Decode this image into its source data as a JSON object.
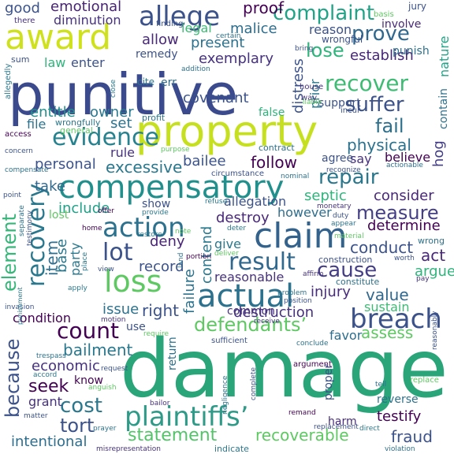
{
  "words": [
    {
      "text": "damage",
      "color": "#2aa57a"
    },
    {
      "text": "punitive",
      "color": "#3a4a8c"
    },
    {
      "text": "property",
      "color": "#c6e020"
    },
    {
      "text": "award",
      "color": "#cfe11c"
    },
    {
      "text": "compensatory",
      "color": "#21908d"
    },
    {
      "text": "claim",
      "color": "#33638d"
    },
    {
      "text": "actual",
      "color": "#2c728e"
    },
    {
      "text": "loss",
      "color": "#5ec962"
    },
    {
      "text": "breach",
      "color": "#3b528b"
    },
    {
      "text": "plaintiffs’",
      "color": "#2e9a88"
    },
    {
      "text": "defendants’",
      "color": "#5ec962"
    },
    {
      "text": "action",
      "color": "#2c728e"
    },
    {
      "text": "recovery",
      "color": "#2a788e"
    },
    {
      "text": "evidence",
      "color": "#26828e"
    },
    {
      "text": "result",
      "color": "#31688e"
    },
    {
      "text": "lot",
      "color": "#3b528b"
    },
    {
      "text": "count",
      "color": "#440154"
    },
    {
      "text": "allege",
      "color": "#3b528b"
    },
    {
      "text": "complaint",
      "color": "#20a386"
    },
    {
      "text": "recover",
      "color": "#3ebc74"
    },
    {
      "text": "prove",
      "color": "#31688e"
    },
    {
      "text": "suffer",
      "color": "#3b528b"
    },
    {
      "text": "element",
      "color": "#35b779"
    },
    {
      "text": "cause",
      "color": "#433e85"
    },
    {
      "text": "measure",
      "color": "#433e85"
    },
    {
      "text": "repair",
      "color": "#2a788e"
    },
    {
      "text": "fail",
      "color": "#2d708e"
    },
    {
      "text": "cost",
      "color": "#2a788e"
    },
    {
      "text": "tort",
      "color": "#3b528b"
    },
    {
      "text": "statement",
      "color": "#52c569"
    },
    {
      "text": "recoverable",
      "color": "#5ec962"
    },
    {
      "text": "fraud",
      "color": "#3b528b"
    },
    {
      "text": "because",
      "color": "#3b528b"
    },
    {
      "text": "intentional",
      "color": "#2e6e8e"
    },
    {
      "text": "lose",
      "color": "#2fb47c"
    },
    {
      "text": "physical",
      "color": "#2c728e"
    },
    {
      "text": "bailment",
      "color": "#2a788e"
    },
    {
      "text": "seek",
      "color": "#440154"
    },
    {
      "text": "economic",
      "color": "#46327e"
    },
    {
      "text": "destroy",
      "color": "#482878"
    },
    {
      "text": "conduct",
      "color": "#3b528b"
    },
    {
      "text": "value",
      "color": "#31688e"
    },
    {
      "text": "injury",
      "color": "#472d7b"
    },
    {
      "text": "issue",
      "color": "#2c728e"
    },
    {
      "text": "right",
      "color": "#3b528b"
    },
    {
      "text": "item",
      "color": "#2e6e8e"
    },
    {
      "text": "base",
      "color": "#2a788e"
    },
    {
      "text": "include",
      "color": "#1fa187"
    },
    {
      "text": "record",
      "color": "#3b528b"
    },
    {
      "text": "deny",
      "color": "#482475"
    },
    {
      "text": "party",
      "color": "#2a788e"
    },
    {
      "text": "reasonable",
      "color": "#46327e"
    },
    {
      "text": "contend",
      "color": "#2a788e"
    },
    {
      "text": "failure",
      "color": "#2c728e"
    },
    {
      "text": "destruction",
      "color": "#46327e"
    },
    {
      "text": "assess",
      "color": "#5ec962"
    },
    {
      "text": "act",
      "color": "#482878"
    },
    {
      "text": "argue",
      "color": "#2fb47c"
    },
    {
      "text": "determine",
      "color": "#440154"
    },
    {
      "text": "however",
      "color": "#2e6e8e"
    },
    {
      "text": "septic",
      "color": "#2fb47c"
    },
    {
      "text": "consider",
      "color": "#482878"
    },
    {
      "text": "hog",
      "color": "#433e85"
    },
    {
      "text": "excessive",
      "color": "#2a788e"
    },
    {
      "text": "bailee",
      "color": "#3b528b"
    },
    {
      "text": "follow",
      "color": "#440154"
    },
    {
      "text": "personal",
      "color": "#3b528b"
    },
    {
      "text": "rule",
      "color": "#46327e"
    },
    {
      "text": "set",
      "color": "#2c728e"
    },
    {
      "text": "entitle",
      "color": "#21908d"
    },
    {
      "text": "owner",
      "color": "#2a788e"
    },
    {
      "text": "covenant",
      "color": "#3b528b"
    },
    {
      "text": "exemplary",
      "color": "#46327e"
    },
    {
      "text": "malice",
      "color": "#2e6e8e"
    },
    {
      "text": "present",
      "color": "#2c728e"
    },
    {
      "text": "law",
      "color": "#2fb47c"
    },
    {
      "text": "enter",
      "color": "#3b528b"
    },
    {
      "text": "allow",
      "color": "#482878"
    },
    {
      "text": "legal",
      "color": "#3ebc74"
    },
    {
      "text": "remedy",
      "color": "#3b528b"
    },
    {
      "text": "proof",
      "color": "#440154"
    },
    {
      "text": "good",
      "color": "#3b528b"
    },
    {
      "text": "emotional",
      "color": "#482475"
    },
    {
      "text": "diminution",
      "color": "#46327e"
    },
    {
      "text": "distress",
      "color": "#3b528b"
    },
    {
      "text": "prior",
      "color": "#2a788e"
    },
    {
      "text": "reason",
      "color": "#3b528b"
    },
    {
      "text": "establish",
      "color": "#482878"
    },
    {
      "text": "nature",
      "color": "#20a386"
    },
    {
      "text": "support",
      "color": "#3b528b"
    },
    {
      "text": "contain",
      "color": "#2c728e"
    },
    {
      "text": "believe",
      "color": "#440154"
    },
    {
      "text": "say",
      "color": "#46327e"
    },
    {
      "text": "agree",
      "color": "#3b528b"
    },
    {
      "text": "take",
      "color": "#31688e"
    },
    {
      "text": "lost",
      "color": "#5ec962"
    },
    {
      "text": "show",
      "color": "#3b528b"
    },
    {
      "text": "allegation",
      "color": "#3b528b"
    },
    {
      "text": "give",
      "color": "#2a788e"
    },
    {
      "text": "common",
      "color": "#46327e"
    },
    {
      "text": "condition",
      "color": "#440154"
    },
    {
      "text": "use",
      "color": "#3b528b"
    },
    {
      "text": "return",
      "color": "#2c728e"
    },
    {
      "text": "favor",
      "color": "#2e6e8e"
    },
    {
      "text": "sustain",
      "color": "#3ebc74"
    },
    {
      "text": "testify",
      "color": "#440154"
    },
    {
      "text": "harm",
      "color": "#472d7b"
    },
    {
      "text": "grant",
      "color": "#46327e"
    },
    {
      "text": "know",
      "color": "#440154"
    },
    {
      "text": "proper",
      "color": "#3b528b"
    },
    {
      "text": "reverse",
      "color": "#2c728e"
    },
    {
      "text": "file",
      "color": "#2c728e"
    },
    {
      "text": "false",
      "color": "#2fb47c"
    },
    {
      "text": "err",
      "color": "#2e6e8e"
    },
    {
      "text": "cite",
      "color": "#2a788e"
    },
    {
      "text": "punish",
      "color": "#2c728e"
    },
    {
      "text": "involve",
      "color": "#482878"
    },
    {
      "text": "wrongful",
      "color": "#3b528b"
    },
    {
      "text": "jury",
      "color": "#3b528b"
    },
    {
      "text": "there",
      "color": "#46327e"
    },
    {
      "text": "sum",
      "color": "#3b528b"
    },
    {
      "text": "wrongfully",
      "color": "#2a788e"
    },
    {
      "text": "general",
      "color": "#5ec962"
    },
    {
      "text": "contract",
      "color": "#2c728e"
    },
    {
      "text": "incur",
      "color": "#3b528b"
    },
    {
      "text": "profit",
      "color": "#2a788e"
    },
    {
      "text": "finding",
      "color": "#3b528b"
    },
    {
      "text": "certain",
      "color": "#2c728e"
    },
    {
      "text": "basis",
      "color": "#5ec962"
    },
    {
      "text": "bring",
      "color": "#3b528b"
    },
    {
      "text": "addition",
      "color": "#2c728e"
    },
    {
      "text": "house",
      "color": "#46327e"
    },
    {
      "text": "way",
      "color": "#46327e"
    },
    {
      "text": "close",
      "color": "#2a788e"
    },
    {
      "text": "liable",
      "color": "#5ec962"
    },
    {
      "text": "allegedly",
      "color": "#2a788e"
    },
    {
      "text": "access",
      "color": "#440154"
    },
    {
      "text": "concern",
      "color": "#3b528b"
    },
    {
      "text": "compensate",
      "color": "#2c728e"
    },
    {
      "text": "purpose",
      "color": "#5ec962"
    },
    {
      "text": "circumstance",
      "color": "#3b528b"
    },
    {
      "text": "nominal",
      "color": "#2c728e"
    },
    {
      "text": "recognize",
      "color": "#3b528b"
    },
    {
      "text": "actionable",
      "color": "#2e6e8e"
    },
    {
      "text": "refuse",
      "color": "#2a788e"
    },
    {
      "text": "monetary",
      "color": "#46327e"
    },
    {
      "text": "duty",
      "color": "#3b528b"
    },
    {
      "text": "appear",
      "color": "#2c728e"
    },
    {
      "text": "material",
      "color": "#5ec962"
    },
    {
      "text": "provide",
      "color": "#2a788e"
    },
    {
      "text": "offer",
      "color": "#440154"
    },
    {
      "text": "point",
      "color": "#3b528b"
    },
    {
      "text": "separate",
      "color": "#2c728e"
    },
    {
      "text": "testimony",
      "color": "#3b528b"
    },
    {
      "text": "home",
      "color": "#440154"
    },
    {
      "text": "restore",
      "color": "#2a788e"
    },
    {
      "text": "note",
      "color": "#5ec962"
    },
    {
      "text": "deter",
      "color": "#2a788e"
    },
    {
      "text": "deliver",
      "color": "#5ec962"
    },
    {
      "text": "construction",
      "color": "#3b528b"
    },
    {
      "text": "wrong",
      "color": "#2c728e"
    },
    {
      "text": "worth",
      "color": "#3b528b"
    },
    {
      "text": "pay",
      "color": "#46327e"
    },
    {
      "text": "constitute",
      "color": "#2c728e"
    },
    {
      "text": "portion",
      "color": "#440154"
    },
    {
      "text": "view",
      "color": "#3b528b"
    },
    {
      "text": "place",
      "color": "#2a788e"
    },
    {
      "text": "land",
      "color": "#2c728e"
    },
    {
      "text": "affirm",
      "color": "#46327e"
    },
    {
      "text": "problem",
      "color": "#2c728e"
    },
    {
      "text": "position",
      "color": "#3b528b"
    },
    {
      "text": "apply",
      "color": "#2a788e"
    },
    {
      "text": "invasion",
      "color": "#3b528b"
    },
    {
      "text": "punishment",
      "color": "#2a788e"
    },
    {
      "text": "motion",
      "color": "#46327e"
    },
    {
      "text": "trespass",
      "color": "#2c728e"
    },
    {
      "text": "receive",
      "color": "#46327e"
    },
    {
      "text": "require",
      "color": "#5ec962"
    },
    {
      "text": "sufficient",
      "color": "#3b528b"
    },
    {
      "text": "conclude",
      "color": "#2c728e"
    },
    {
      "text": "request",
      "color": "#3b528b"
    },
    {
      "text": "accord",
      "color": "#2a788e"
    },
    {
      "text": "anguish",
      "color": "#5ec962"
    },
    {
      "text": "argument",
      "color": "#440154"
    },
    {
      "text": "replace",
      "color": "#5ec962"
    },
    {
      "text": "bailor",
      "color": "#46327e"
    },
    {
      "text": "negligence",
      "color": "#2c728e"
    },
    {
      "text": "complete",
      "color": "#3b528b"
    },
    {
      "text": "tell",
      "color": "#2c728e"
    },
    {
      "text": "remand",
      "color": "#440154"
    },
    {
      "text": "replacement",
      "color": "#3b528b"
    },
    {
      "text": "direct",
      "color": "#2a788e"
    },
    {
      "text": "matter",
      "color": "#3b528b"
    },
    {
      "text": "prayer",
      "color": "#2c728e"
    },
    {
      "text": "misrepresentation",
      "color": "#46327e"
    },
    {
      "text": "indicate",
      "color": "#2a788e"
    },
    {
      "text": "violation",
      "color": "#2c728e"
    },
    {
      "text": "reasonably",
      "color": "#3b528b"
    }
  ]
}
